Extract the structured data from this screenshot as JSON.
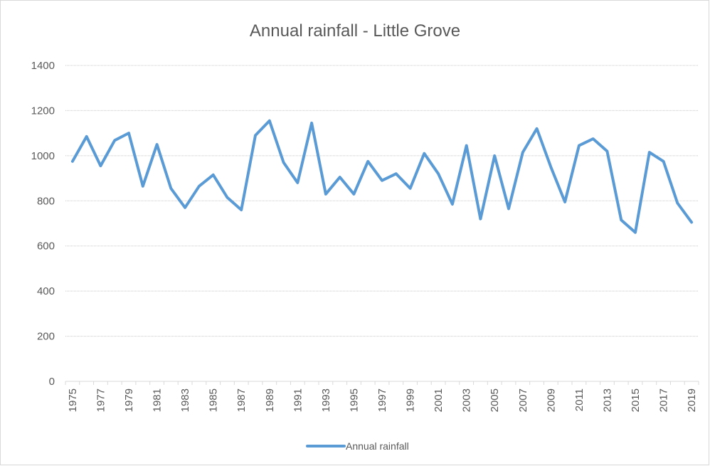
{
  "chart_data": {
    "type": "line",
    "title": "Annual rainfall - Little Grove",
    "xlabel": "",
    "ylabel": "",
    "ylim": [
      0,
      1400
    ],
    "yticks": [
      0,
      200,
      400,
      600,
      800,
      1000,
      1200,
      1400
    ],
    "x": [
      1975,
      1976,
      1977,
      1978,
      1979,
      1980,
      1981,
      1982,
      1983,
      1984,
      1985,
      1986,
      1987,
      1988,
      1989,
      1990,
      1991,
      1992,
      1993,
      1994,
      1995,
      1996,
      1997,
      1998,
      1999,
      2000,
      2001,
      2002,
      2003,
      2004,
      2005,
      2006,
      2007,
      2008,
      2009,
      2010,
      2011,
      2012,
      2013,
      2014,
      2015,
      2016,
      2017,
      2018,
      2019
    ],
    "xtick_labels": [
      "1975",
      "1977",
      "1979",
      "1981",
      "1983",
      "1985",
      "1987",
      "1989",
      "1991",
      "1993",
      "1995",
      "1997",
      "1999",
      "2001",
      "2003",
      "2005",
      "2007",
      "2009",
      "2011",
      "2013",
      "2015",
      "2017",
      "2019"
    ],
    "series": [
      {
        "name": "Annual rainfall",
        "color": "#5b9bd5",
        "values": [
          975,
          1085,
          955,
          1068,
          1100,
          865,
          1050,
          855,
          770,
          865,
          915,
          815,
          760,
          1090,
          1155,
          970,
          880,
          1145,
          830,
          905,
          830,
          975,
          890,
          920,
          855,
          1010,
          920,
          785,
          1045,
          720,
          1000,
          765,
          1015,
          1120,
          950,
          795,
          1045,
          1075,
          1020,
          715,
          660,
          1015,
          975,
          790,
          705
        ]
      }
    ],
    "legend": "bottom",
    "grid": true
  }
}
